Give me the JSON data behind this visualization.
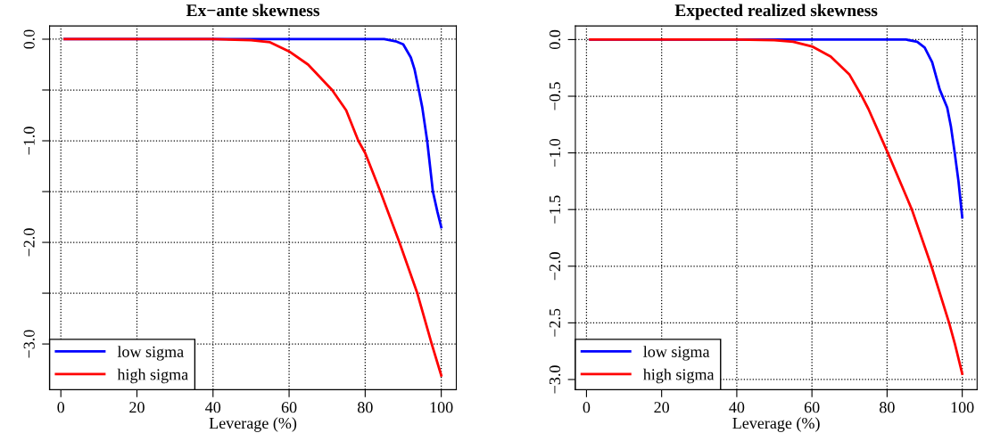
{
  "chart_data": [
    {
      "type": "line",
      "title": "Ex−ante skewness",
      "xlabel": "Leverage (%)",
      "xlim": [
        -2.96,
        103.96
      ],
      "ylim": [
        -3.45,
        0.13
      ],
      "xticks": [
        0,
        20,
        40,
        60,
        80,
        100
      ],
      "yticks": [
        {
          "value": -3.0,
          "label": "−3.0"
        },
        {
          "value": -2.5,
          "label": null
        },
        {
          "value": -2.0,
          "label": "−2.0"
        },
        {
          "value": -1.5,
          "label": null
        },
        {
          "value": -1.0,
          "label": "−1.0"
        },
        {
          "value": -0.5,
          "label": null
        },
        {
          "value": 0.0,
          "label": "0.0"
        }
      ],
      "grid": true,
      "legend": "bottom left",
      "line_style": "solid",
      "marker": "none",
      "series": [
        {
          "name": "low sigma",
          "color": "#0000ff",
          "x": [
            1,
            20,
            40,
            60,
            80,
            85,
            88,
            90,
            92,
            93,
            94.1,
            95,
            96.3,
            97.8,
            99,
            100
          ],
          "values": [
            0,
            0,
            0,
            0,
            0,
            0,
            -0.02,
            -0.05,
            -0.18,
            -0.3,
            -0.5,
            -0.67,
            -1.0,
            -1.5,
            -1.7,
            -1.85
          ]
        },
        {
          "name": "high sigma",
          "color": "#ff0000",
          "x": [
            1,
            20,
            40,
            50,
            55,
            60,
            65,
            71.3,
            75,
            78.2,
            80,
            84,
            89,
            93.7,
            97.5,
            100
          ],
          "values": [
            0,
            0,
            0,
            -0.01,
            -0.03,
            -0.12,
            -0.25,
            -0.5,
            -0.7,
            -1.0,
            -1.12,
            -1.5,
            -2.0,
            -2.5,
            -3.0,
            -3.31
          ]
        }
      ]
    },
    {
      "type": "line",
      "title": "Expected realized skewness",
      "xlabel": "Leverage (%)",
      "xlim": [
        -2.96,
        103.96
      ],
      "ylim": [
        -3.09,
        0.12
      ],
      "xticks": [
        0,
        20,
        40,
        60,
        80,
        100
      ],
      "yticks": [
        {
          "value": -3.0,
          "label": "−3.0"
        },
        {
          "value": -2.5,
          "label": "−2.5"
        },
        {
          "value": -2.0,
          "label": "−2.0"
        },
        {
          "value": -1.5,
          "label": "−1.5"
        },
        {
          "value": -1.0,
          "label": "−1.0"
        },
        {
          "value": -0.5,
          "label": "−0.5"
        },
        {
          "value": 0.0,
          "label": "0.0"
        }
      ],
      "grid": true,
      "legend": "bottom left",
      "line_style": "solid",
      "marker": "none",
      "series": [
        {
          "name": "low sigma",
          "color": "#0000ff",
          "x": [
            1,
            20,
            40,
            60,
            80,
            85,
            88,
            90,
            92,
            94,
            96,
            97,
            98,
            99,
            100
          ],
          "values": [
            0,
            0,
            0,
            0,
            0,
            0,
            -0.02,
            -0.07,
            -0.2,
            -0.44,
            -0.6,
            -0.77,
            -1.0,
            -1.25,
            -1.57
          ]
        },
        {
          "name": "high sigma",
          "color": "#ff0000",
          "x": [
            1,
            20,
            40,
            50,
            55,
            60,
            65,
            70,
            73.3,
            75,
            80.2,
            86.6,
            91.8,
            96.5,
            98,
            100
          ],
          "values": [
            0,
            0,
            0,
            -0.005,
            -0.02,
            -0.06,
            -0.15,
            -0.31,
            -0.5,
            -0.61,
            -1.0,
            -1.5,
            -2.0,
            -2.5,
            -2.68,
            -2.95
          ]
        }
      ]
    }
  ]
}
